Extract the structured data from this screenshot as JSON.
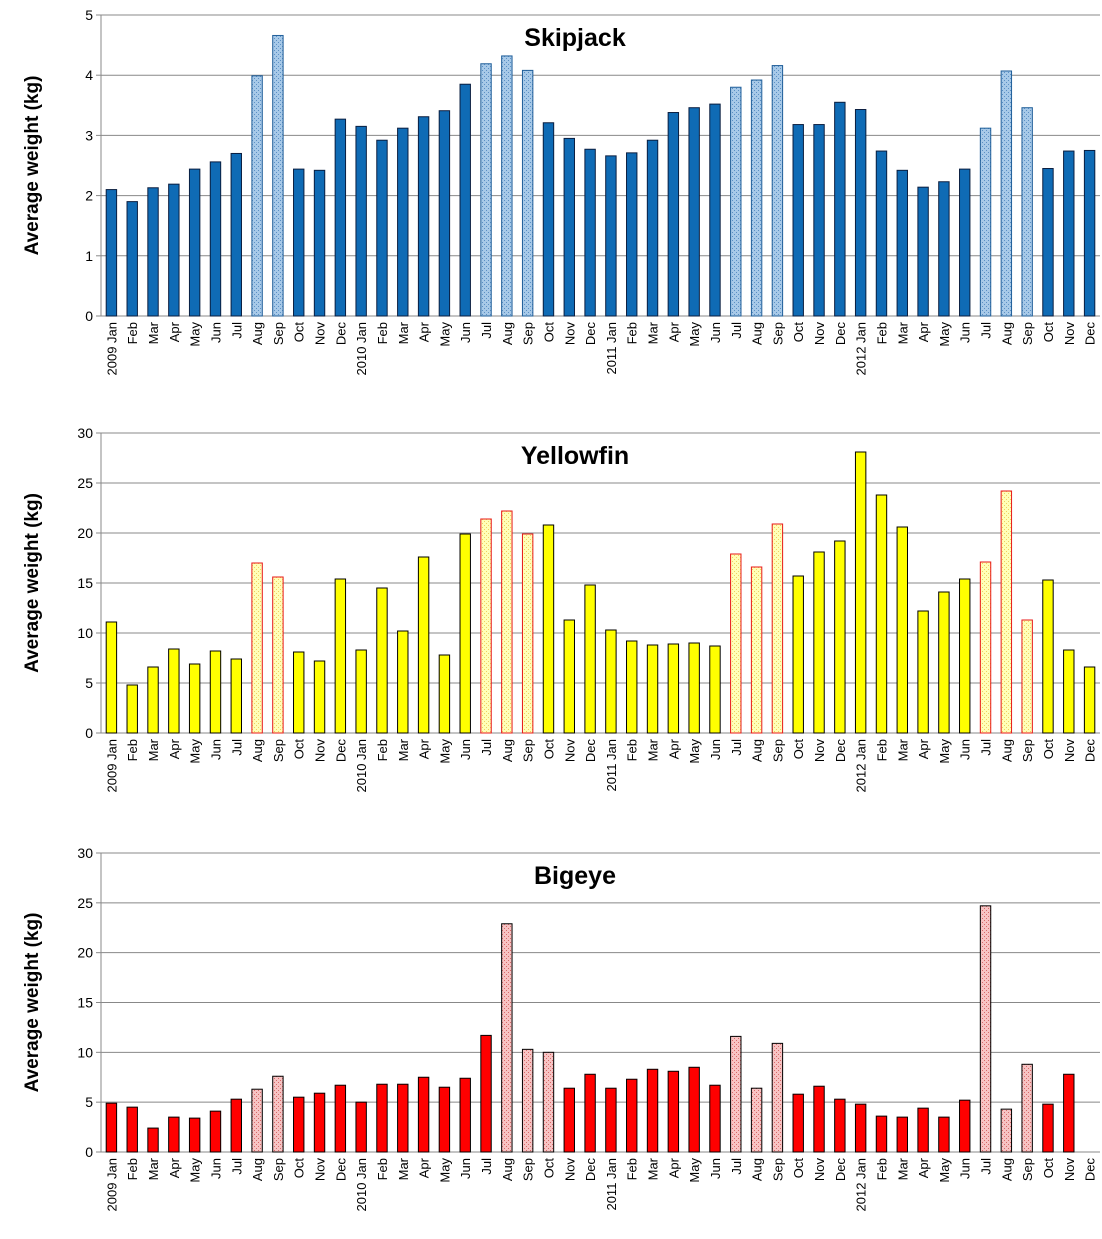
{
  "chart_data": [
    {
      "type": "bar",
      "title": "Skipjack",
      "ylabel": "Average weight (kg)",
      "xlabel": "",
      "ylim": [
        0,
        5
      ],
      "yticks": [
        0,
        1,
        2,
        3,
        4,
        5
      ],
      "grid": true,
      "categories": [
        "2009 Jan",
        "Feb",
        "Mar",
        "Apr",
        "May",
        "Jun",
        "Jul",
        "Aug",
        "Sep",
        "Oct",
        "Nov",
        "Dec",
        "2010 Jan",
        "Feb",
        "Mar",
        "Apr",
        "May",
        "Jun",
        "Jul",
        "Aug",
        "Sep",
        "Oct",
        "Nov",
        "Dec",
        "2011 Jan",
        "Feb",
        "Mar",
        "Apr",
        "May",
        "Jun",
        "Jul",
        "Aug",
        "Sep",
        "Oct",
        "Nov",
        "Dec",
        "2012 Jan",
        "Feb",
        "Mar",
        "Apr",
        "May",
        "Jun",
        "Jul",
        "Aug",
        "Sep",
        "Oct",
        "Nov",
        "Dec"
      ],
      "values": [
        2.1,
        1.9,
        2.13,
        2.19,
        2.44,
        2.56,
        2.7,
        3.99,
        4.66,
        2.44,
        2.42,
        3.27,
        3.15,
        2.92,
        3.12,
        3.31,
        3.41,
        3.85,
        4.19,
        4.32,
        4.08,
        3.21,
        2.95,
        2.77,
        2.66,
        2.71,
        2.92,
        3.38,
        3.46,
        3.52,
        3.8,
        3.92,
        4.16,
        3.18,
        3.18,
        3.55,
        3.43,
        2.74,
        2.42,
        2.14,
        2.23,
        2.44,
        3.12,
        4.07,
        3.46,
        2.45,
        2.74,
        2.75
      ],
      "highlighted": [
        false,
        false,
        false,
        false,
        false,
        false,
        false,
        true,
        true,
        false,
        false,
        false,
        false,
        false,
        false,
        false,
        false,
        false,
        true,
        true,
        true,
        false,
        false,
        false,
        false,
        false,
        false,
        false,
        false,
        false,
        true,
        true,
        true,
        false,
        false,
        false,
        false,
        false,
        false,
        false,
        false,
        false,
        true,
        true,
        true,
        false,
        false,
        false
      ],
      "colors": {
        "fill": "#0F6BB5",
        "stroke": "#0A1E40",
        "hatch_fill": "#A7C9E8",
        "hatch_stroke": "#1F5E99",
        "hatch_dot": "#5B8FC4"
      }
    },
    {
      "type": "bar",
      "title": "Yellowfin",
      "ylabel": "Average weight (kg)",
      "xlabel": "",
      "ylim": [
        0,
        30
      ],
      "yticks": [
        0,
        5,
        10,
        15,
        20,
        25,
        30
      ],
      "grid": true,
      "categories": [
        "2009 Jan",
        "Feb",
        "Mar",
        "Apr",
        "May",
        "Jun",
        "Jul",
        "Aug",
        "Sep",
        "Oct",
        "Nov",
        "Dec",
        "2010 Jan",
        "Feb",
        "Mar",
        "Apr",
        "May",
        "Jun",
        "Jul",
        "Aug",
        "Sep",
        "Oct",
        "Nov",
        "Dec",
        "2011 Jan",
        "Feb",
        "Mar",
        "Apr",
        "May",
        "Jun",
        "Jul",
        "Aug",
        "Sep",
        "Oct",
        "Nov",
        "Dec",
        "2012 Jan",
        "Feb",
        "Mar",
        "Apr",
        "May",
        "Jun",
        "Jul",
        "Aug",
        "Sep",
        "Oct",
        "Nov",
        "Dec"
      ],
      "values": [
        11.1,
        4.8,
        6.6,
        8.4,
        6.9,
        8.2,
        7.4,
        17.0,
        15.6,
        8.1,
        7.2,
        15.4,
        8.3,
        14.5,
        10.2,
        17.6,
        7.8,
        19.9,
        21.4,
        22.2,
        19.9,
        20.8,
        11.3,
        14.8,
        10.3,
        9.2,
        8.8,
        8.9,
        9.0,
        8.7,
        17.9,
        16.6,
        20.9,
        15.7,
        18.1,
        19.2,
        28.1,
        23.8,
        20.6,
        12.2,
        14.1,
        15.4,
        17.1,
        24.2,
        11.3,
        15.3,
        8.3,
        6.6
      ],
      "highlighted": [
        false,
        false,
        false,
        false,
        false,
        false,
        false,
        true,
        true,
        false,
        false,
        false,
        false,
        false,
        false,
        false,
        false,
        false,
        true,
        true,
        true,
        false,
        false,
        false,
        false,
        false,
        false,
        false,
        false,
        false,
        true,
        true,
        true,
        false,
        false,
        false,
        false,
        false,
        false,
        false,
        false,
        false,
        true,
        true,
        true,
        false,
        false,
        false
      ],
      "colors": {
        "fill": "#FFFF00",
        "stroke": "#000000",
        "hatch_fill": "#FFFFB8",
        "hatch_stroke": "#E81818",
        "hatch_dot": "#F0D060"
      }
    },
    {
      "type": "bar",
      "title": "Bigeye",
      "ylabel": "Average weight (kg)",
      "xlabel": "",
      "ylim": [
        0,
        30
      ],
      "yticks": [
        0,
        5,
        10,
        15,
        20,
        25,
        30
      ],
      "grid": true,
      "categories": [
        "2009 Jan",
        "Feb",
        "Mar",
        "Apr",
        "May",
        "Jun",
        "Jul",
        "Aug",
        "Sep",
        "Oct",
        "Nov",
        "Dec",
        "2010 Jan",
        "Feb",
        "Mar",
        "Apr",
        "May",
        "Jun",
        "Jul",
        "Aug",
        "Sep",
        "Oct",
        "Nov",
        "Dec",
        "2011 Jan",
        "Feb",
        "Mar",
        "Apr",
        "May",
        "Jun",
        "Jul",
        "Aug",
        "Sep",
        "Oct",
        "Nov",
        "Dec",
        "2012 Jan",
        "Feb",
        "Mar",
        "Apr",
        "May",
        "Jun",
        "Jul",
        "Aug",
        "Sep",
        "Oct",
        "Nov",
        "Dec"
      ],
      "values": [
        4.9,
        4.5,
        2.4,
        3.5,
        3.4,
        4.1,
        5.3,
        6.3,
        7.6,
        5.5,
        5.9,
        6.7,
        5.0,
        6.8,
        6.8,
        7.5,
        6.5,
        7.4,
        11.7,
        22.9,
        10.3,
        10.0,
        6.4,
        7.8,
        6.4,
        7.3,
        8.3,
        8.1,
        8.5,
        6.7,
        11.6,
        6.4,
        10.9,
        5.8,
        6.6,
        5.3,
        4.8,
        3.6,
        3.5,
        4.4,
        3.5,
        5.2,
        24.7,
        4.3,
        8.8,
        4.8,
        7.8,
        0
      ],
      "highlighted": [
        false,
        false,
        false,
        false,
        false,
        false,
        false,
        true,
        true,
        false,
        false,
        false,
        false,
        false,
        false,
        false,
        false,
        false,
        false,
        true,
        true,
        true,
        false,
        false,
        false,
        false,
        false,
        false,
        false,
        false,
        true,
        true,
        true,
        false,
        false,
        false,
        false,
        false,
        false,
        false,
        false,
        false,
        true,
        true,
        true,
        false,
        false,
        false
      ],
      "colors": {
        "fill": "#FF0000",
        "stroke": "#000000",
        "hatch_fill": "#F7C3C3",
        "hatch_stroke": "#000000",
        "hatch_dot": "#D86A6A"
      }
    }
  ]
}
